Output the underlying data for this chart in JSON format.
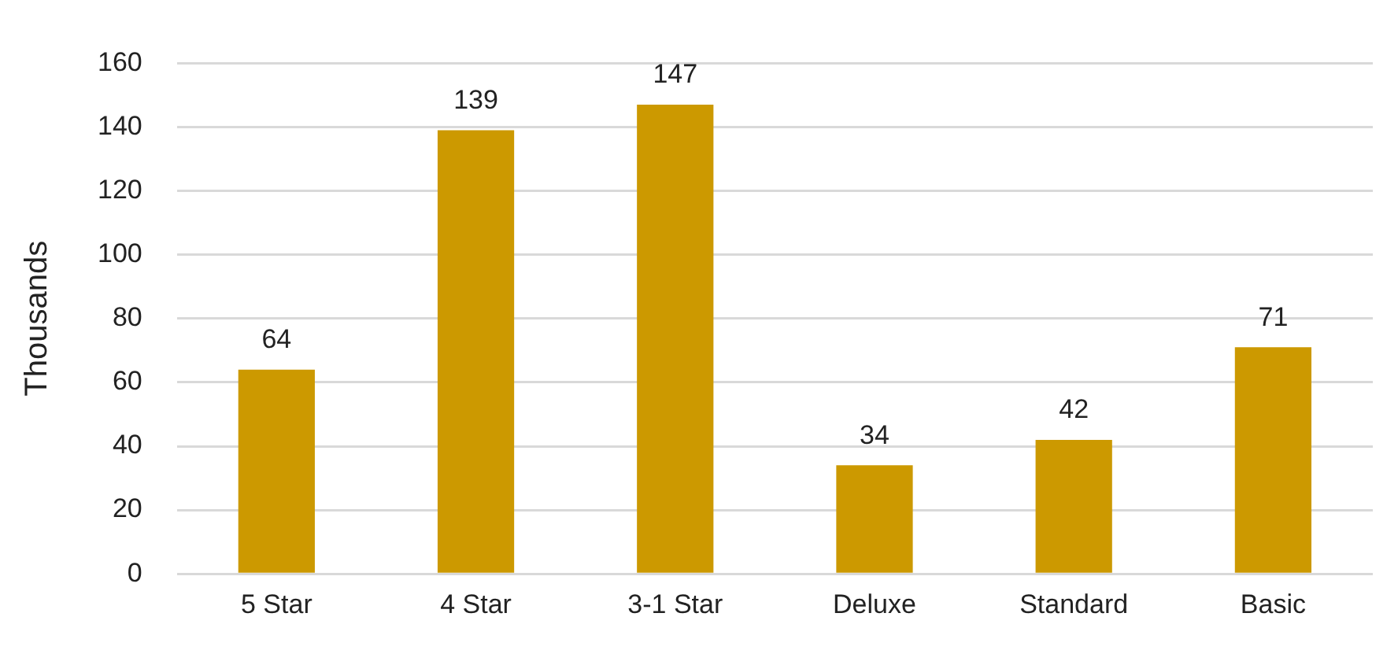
{
  "chart_data": {
    "type": "bar",
    "ylabel": "Thousands",
    "categories": [
      "5 Star",
      "4 Star",
      "3-1 Star",
      "Deluxe",
      "Standard",
      "Basic"
    ],
    "values": [
      64,
      139,
      147,
      34,
      42,
      71
    ],
    "color": "#cc9900",
    "ylim": [
      0,
      160
    ],
    "yticks": [
      0,
      20,
      40,
      60,
      80,
      100,
      120,
      140,
      160
    ],
    "grid": "y",
    "data_labels": true,
    "legend": false
  }
}
